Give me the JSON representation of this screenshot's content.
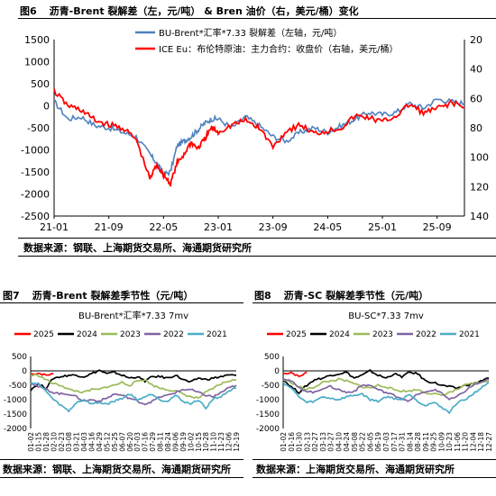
{
  "fig6": {
    "number": "图6",
    "title": "沥青-Brent 裂解差（左，元/吨） & Bren 油价（右，美元/桶）变化",
    "source": "数据来源：钢联、上海期货交易所、海通期货研究所"
  },
  "fig7": {
    "number": "图7",
    "title": "沥青-Brent 裂解差季节性（元/吨）",
    "source": "数据来源：钢联、上海期货交易所、海通期货研究所"
  },
  "fig8": {
    "number": "图8",
    "title": "沥青-SC 裂解差季节性（元/吨）",
    "source": "数据来源：上海期货交易所、海通期货研究所"
  },
  "colors": {
    "blue": "#4f81bd",
    "red": "#ff0000",
    "black": "#000000",
    "green": "#9bbb59",
    "purple": "#8064a2",
    "cyan": "#4bacc6"
  },
  "chart_data": [
    {
      "type": "line",
      "legend_placement": "top",
      "x_tick_labels": [
        "21-01",
        "21-09",
        "22-05",
        "23-01",
        "23-09",
        "24-05",
        "25-01",
        "25-09"
      ],
      "y_left": {
        "ticks": [
          1500,
          1000,
          500,
          0,
          -500,
          -1000,
          -1500,
          -2000,
          -2500
        ],
        "ylim": [
          -2500,
          1500
        ]
      },
      "y_right": {
        "ticks": [
          20,
          40,
          60,
          80,
          100,
          120,
          140
        ],
        "ylim": [
          140,
          20
        ],
        "inverted": true
      },
      "grid": false,
      "series": [
        {
          "name": "BU-Brent*汇率*7.33 裂解差（左轴，元/吨）",
          "axis": "left",
          "color": "#4f81bd",
          "x": [
            "21-01",
            "21-03",
            "21-05",
            "21-07",
            "21-09",
            "21-11",
            "22-01",
            "22-03",
            "22-04",
            "22-05",
            "22-06",
            "22-07",
            "22-08",
            "22-09",
            "22-10",
            "22-11",
            "22-12",
            "23-01",
            "23-03",
            "23-05",
            "23-07",
            "23-09",
            "23-11",
            "24-01",
            "24-03",
            "24-05",
            "24-07",
            "24-09",
            "24-11",
            "25-01",
            "25-03",
            "25-05",
            "25-07",
            "25-09",
            "25-11",
            "26-01"
          ],
          "values": [
            100,
            -300,
            -250,
            -450,
            -500,
            -600,
            -700,
            -1100,
            -1300,
            -1550,
            -1500,
            -900,
            -800,
            -700,
            -550,
            -400,
            -300,
            -300,
            -500,
            -250,
            -450,
            -700,
            -800,
            -600,
            -500,
            -600,
            -450,
            -300,
            -150,
            -200,
            -150,
            50,
            -50,
            150,
            100,
            50
          ]
        },
        {
          "name": "ICE Eu：布伦特原油：主力合约：收盘价（右轴，美元/桶）",
          "axis": "right",
          "color": "#ff0000",
          "x": [
            "21-01",
            "21-03",
            "21-05",
            "21-07",
            "21-09",
            "21-11",
            "22-01",
            "22-03",
            "22-04",
            "22-05",
            "22-06",
            "22-07",
            "22-08",
            "22-09",
            "22-10",
            "22-11",
            "22-12",
            "23-01",
            "23-03",
            "23-05",
            "23-07",
            "23-09",
            "23-11",
            "24-01",
            "24-03",
            "24-05",
            "24-07",
            "24-09",
            "24-11",
            "25-01",
            "25-03",
            "25-05",
            "25-07",
            "25-09",
            "25-11",
            "26-01"
          ],
          "values": [
            55,
            65,
            68,
            75,
            78,
            80,
            88,
            115,
            105,
            112,
            118,
            104,
            98,
            90,
            94,
            88,
            80,
            83,
            78,
            75,
            80,
            93,
            82,
            78,
            84,
            82,
            80,
            72,
            73,
            76,
            72,
            64,
            70,
            67,
            63,
            66
          ]
        }
      ]
    },
    {
      "type": "line",
      "title": "BU-Brent*汇率*7.33 7mv",
      "legend_placement": "top",
      "x_tick_labels": [
        "01-02",
        "01-15",
        "01-28",
        "02-10",
        "02-23",
        "03-08",
        "03-21",
        "04-03",
        "04-16",
        "04-29",
        "05-12",
        "05-25",
        "06-07",
        "06-20",
        "07-03",
        "07-16",
        "07-29",
        "08-11",
        "08-24",
        "09-06",
        "09-19",
        "10-02",
        "10-15",
        "10-28",
        "11-10",
        "11-23",
        "12-06",
        "12-19"
      ],
      "ylim": [
        -2000,
        500
      ],
      "y_ticks": [
        500,
        0,
        -500,
        -1000,
        -1500,
        -2000
      ],
      "series": [
        {
          "name": "2025",
          "color": "#ff0000",
          "values": [
            -120,
            -80,
            -150,
            -100
          ]
        },
        {
          "name": "2024",
          "color": "#000000",
          "values": [
            -650,
            -450,
            -600,
            -250,
            -200,
            -150,
            -150,
            -200,
            -100,
            20,
            -100,
            -50,
            -150,
            -250,
            -200,
            -350,
            -200,
            -200,
            -250,
            -150,
            -300,
            -400,
            -250,
            -300,
            -250,
            -200,
            -150,
            -150
          ]
        },
        {
          "name": "2023",
          "color": "#9bbb59",
          "values": [
            -150,
            -150,
            -300,
            -450,
            -500,
            -650,
            -700,
            -750,
            -650,
            -650,
            -550,
            -500,
            -400,
            -500,
            -350,
            -300,
            -500,
            -600,
            -650,
            -700,
            -800,
            -900,
            -950,
            -750,
            -600,
            -450,
            -350,
            -300
          ]
        },
        {
          "name": "2022",
          "color": "#8064a2",
          "values": [
            -400,
            -550,
            -650,
            -750,
            -800,
            -800,
            -900,
            -1050,
            -1000,
            -1050,
            -950,
            -800,
            -850,
            -950,
            -1050,
            -1150,
            -1050,
            -900,
            -850,
            -750,
            -650,
            -650,
            -750,
            -850,
            -900,
            -750,
            -600,
            -500
          ]
        },
        {
          "name": "2021",
          "color": "#4bacc6",
          "values": [
            -400,
            -450,
            -700,
            -1000,
            -1200,
            -1400,
            -1100,
            -1000,
            -1150,
            -1100,
            -1150,
            -1050,
            -950,
            -800,
            -1000,
            -900,
            -800,
            -1000,
            -1050,
            -850,
            -1050,
            -1150,
            -1000,
            -1300,
            -950,
            -900,
            -700,
            -600
          ]
        }
      ]
    },
    {
      "type": "line",
      "title": "BU-SC*7.33 7mv",
      "legend_placement": "top",
      "x_tick_labels": [
        "01-02",
        "01-16",
        "01-30",
        "02-13",
        "02-27",
        "03-13",
        "03-27",
        "04-10",
        "04-24",
        "05-08",
        "05-22",
        "06-05",
        "06-19",
        "07-03",
        "07-17",
        "07-31",
        "08-14",
        "08-28",
        "09-11",
        "09-25",
        "10-09",
        "10-23",
        "11-06",
        "11-20",
        "12-04",
        "12-18",
        "12-27"
      ],
      "ylim": [
        -2000,
        500
      ],
      "y_ticks": [
        500,
        0,
        -500,
        -1000,
        -1500,
        -2000
      ],
      "series": [
        {
          "name": "2025",
          "color": "#ff0000",
          "values": [
            -100,
            -50,
            -200,
            -50
          ]
        },
        {
          "name": "2024",
          "color": "#000000",
          "values": [
            -300,
            -550,
            -750,
            -500,
            -300,
            -250,
            -150,
            -100,
            -50,
            -250,
            -150,
            0,
            -150,
            -250,
            -100,
            -200,
            -50,
            -100,
            -350,
            -400,
            -500,
            -550,
            -600,
            -500,
            -450,
            -350,
            -250
          ]
        },
        {
          "name": "2023",
          "color": "#9bbb59",
          "values": [
            -300,
            -400,
            -550,
            -650,
            -550,
            -400,
            -350,
            -300,
            -350,
            -450,
            -550,
            -600,
            -500,
            -550,
            -650,
            -700,
            -700,
            -650,
            -750,
            -800,
            -850,
            -750,
            -650,
            -500,
            -450,
            -400,
            -350
          ]
        },
        {
          "name": "2022",
          "color": "#8064a2",
          "values": [
            -250,
            -350,
            -600,
            -700,
            -750,
            -600,
            -550,
            -650,
            -750,
            -700,
            -500,
            -500,
            -650,
            -750,
            -850,
            -950,
            -1050,
            -800,
            -750,
            -650,
            -750,
            -1000,
            -900,
            -700,
            -500,
            -400,
            -300
          ]
        },
        {
          "name": "2021",
          "color": "#4bacc6",
          "values": [
            -400,
            -600,
            -900,
            -1100,
            -1050,
            -900,
            -950,
            -1000,
            -900,
            -850,
            -800,
            -1000,
            -1050,
            -900,
            -950,
            -1000,
            -800,
            -1050,
            -1200,
            -1100,
            -1250,
            -1450,
            -1100,
            -1000,
            -800,
            -600,
            -400
          ]
        }
      ]
    }
  ]
}
